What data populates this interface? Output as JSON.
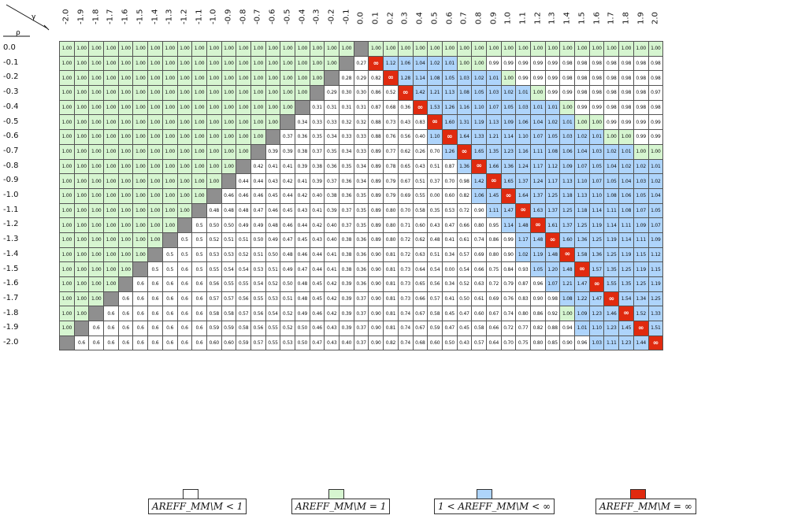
{
  "header": {
    "row_symbol": "ρ",
    "col_symbol": "γ"
  },
  "columns": [
    "-2.0",
    "-1.9",
    "-1.8",
    "-1.7",
    "-1.6",
    "-1.5",
    "-1.4",
    "-1.3",
    "-1.2",
    "-1.1",
    "-1.0",
    "-0.9",
    "-0.8",
    "-0.7",
    "-0.6",
    "-0.5",
    "-0.4",
    "-0.3",
    "-0.2",
    "-0.1",
    "0.0",
    "0.1",
    "0.2",
    "0.3",
    "0.4",
    "0.5",
    "0.6",
    "0.7",
    "0.8",
    "0.9",
    "1.0",
    "1.1",
    "1.2",
    "1.3",
    "1.4",
    "1.5",
    "1.6",
    "1.7",
    "1.8",
    "1.9",
    "2.0"
  ],
  "rows": [
    {
      "label": "0.0",
      "cells": [
        "1.00",
        "1.00",
        "1.00",
        "1.00",
        "1.00",
        "1.00",
        "1.00",
        "1.00",
        "1.00",
        "1.00",
        "1.00",
        "1.00",
        "1.00",
        "1.00",
        "1.00",
        "1.00",
        "1.00",
        "1.00",
        "1.00",
        "1.00",
        "",
        "1.00",
        "1.00",
        "1.00",
        "1.00",
        "1.00",
        "1.00",
        "1.00",
        "1.00",
        "1.00",
        "1.00",
        "1.00",
        "1.00",
        "1.00",
        "1.00",
        "1.00",
        "1.00",
        "1.00",
        "1.00",
        "1.00",
        "1.00"
      ]
    },
    {
      "label": "-0.1",
      "cells": [
        "1.00",
        "1.00",
        "1.00",
        "1.00",
        "1.00",
        "1.00",
        "1.00",
        "1.00",
        "1.00",
        "1.00",
        "1.00",
        "1.00",
        "1.00",
        "1.00",
        "1.00",
        "1.00",
        "1.00",
        "1.00",
        "1.00",
        "",
        "0.27",
        "∞",
        "1.12",
        "1.06",
        "1.04",
        "1.02",
        "1.01",
        "1.00",
        "1.00",
        "0.99",
        "0.99",
        "0.99",
        "0.99",
        "0.99",
        "0.98",
        "0.98",
        "0.98",
        "0.98",
        "0.98",
        "0.98",
        "0.98"
      ]
    },
    {
      "label": "-0.2",
      "cells": [
        "1.00",
        "1.00",
        "1.00",
        "1.00",
        "1.00",
        "1.00",
        "1.00",
        "1.00",
        "1.00",
        "1.00",
        "1.00",
        "1.00",
        "1.00",
        "1.00",
        "1.00",
        "1.00",
        "1.00",
        "1.00",
        "",
        "0.28",
        "0.29",
        "0.82",
        "∞",
        "1.28",
        "1.14",
        "1.08",
        "1.05",
        "1.03",
        "1.02",
        "1.01",
        "1.00",
        "0.99",
        "0.99",
        "0.99",
        "0.98",
        "0.98",
        "0.98",
        "0.98",
        "0.98",
        "0.98",
        "0.98"
      ]
    },
    {
      "label": "-0.3",
      "cells": [
        "1.00",
        "1.00",
        "1.00",
        "1.00",
        "1.00",
        "1.00",
        "1.00",
        "1.00",
        "1.00",
        "1.00",
        "1.00",
        "1.00",
        "1.00",
        "1.00",
        "1.00",
        "1.00",
        "1.00",
        "",
        "0.29",
        "0.30",
        "0.30",
        "0.86",
        "0.52",
        "∞",
        "1.42",
        "1.21",
        "1.13",
        "1.08",
        "1.05",
        "1.03",
        "1.02",
        "1.01",
        "1.00",
        "0.99",
        "0.99",
        "0.98",
        "0.98",
        "0.98",
        "0.98",
        "0.98",
        "0.97"
      ]
    },
    {
      "label": "-0.4",
      "cells": [
        "1.00",
        "1.00",
        "1.00",
        "1.00",
        "1.00",
        "1.00",
        "1.00",
        "1.00",
        "1.00",
        "1.00",
        "1.00",
        "1.00",
        "1.00",
        "1.00",
        "1.00",
        "1.00",
        "",
        "0.31",
        "0.31",
        "0.31",
        "0.31",
        "0.87",
        "0.68",
        "0.36",
        "∞",
        "1.53",
        "1.26",
        "1.16",
        "1.10",
        "1.07",
        "1.05",
        "1.03",
        "1.01",
        "1.01",
        "1.00",
        "0.99",
        "0.99",
        "0.98",
        "0.98",
        "0.98",
        "0.98"
      ]
    },
    {
      "label": "-0.5",
      "cells": [
        "1.00",
        "1.00",
        "1.00",
        "1.00",
        "1.00",
        "1.00",
        "1.00",
        "1.00",
        "1.00",
        "1.00",
        "1.00",
        "1.00",
        "1.00",
        "1.00",
        "1.00",
        "",
        "0.34",
        "0.33",
        "0.33",
        "0.32",
        "0.32",
        "0.88",
        "0.73",
        "0.43",
        "0.83",
        "∞",
        "1.60",
        "1.31",
        "1.19",
        "1.13",
        "1.09",
        "1.06",
        "1.04",
        "1.02",
        "1.01",
        "1.00",
        "1.00",
        "0.99",
        "0.99",
        "0.99",
        "0.99"
      ]
    },
    {
      "label": "-0.6",
      "cells": [
        "1.00",
        "1.00",
        "1.00",
        "1.00",
        "1.00",
        "1.00",
        "1.00",
        "1.00",
        "1.00",
        "1.00",
        "1.00",
        "1.00",
        "1.00",
        "1.00",
        "",
        "0.37",
        "0.36",
        "0.35",
        "0.34",
        "0.33",
        "0.33",
        "0.88",
        "0.76",
        "0.56",
        "0.40",
        "1.10",
        "∞",
        "1.64",
        "1.33",
        "1.21",
        "1.14",
        "1.10",
        "1.07",
        "1.05",
        "1.03",
        "1.02",
        "1.01",
        "1.00",
        "1.00",
        "0.99",
        "0.99"
      ]
    },
    {
      "label": "-0.7",
      "cells": [
        "1.00",
        "1.00",
        "1.00",
        "1.00",
        "1.00",
        "1.00",
        "1.00",
        "1.00",
        "1.00",
        "1.00",
        "1.00",
        "1.00",
        "1.00",
        "",
        "0.39",
        "0.39",
        "0.38",
        "0.37",
        "0.35",
        "0.34",
        "0.33",
        "0.89",
        "0.77",
        "0.62",
        "0.26",
        "0.70",
        "1.26",
        "∞",
        "1.65",
        "1.35",
        "1.23",
        "1.16",
        "1.11",
        "1.08",
        "1.06",
        "1.04",
        "1.03",
        "1.02",
        "1.01",
        "1.00",
        "1.00"
      ]
    },
    {
      "label": "-0.8",
      "cells": [
        "1.00",
        "1.00",
        "1.00",
        "1.00",
        "1.00",
        "1.00",
        "1.00",
        "1.00",
        "1.00",
        "1.00",
        "1.00",
        "1.00",
        "",
        "0.42",
        "0.41",
        "0.41",
        "0.39",
        "0.38",
        "0.36",
        "0.35",
        "0.34",
        "0.89",
        "0.78",
        "0.65",
        "0.43",
        "0.51",
        "0.87",
        "1.36",
        "∞",
        "1.66",
        "1.36",
        "1.24",
        "1.17",
        "1.12",
        "1.09",
        "1.07",
        "1.05",
        "1.04",
        "1.02",
        "1.02",
        "1.01"
      ]
    },
    {
      "label": "-0.9",
      "cells": [
        "1.00",
        "1.00",
        "1.00",
        "1.00",
        "1.00",
        "1.00",
        "1.00",
        "1.00",
        "1.00",
        "1.00",
        "1.00",
        "",
        "0.44",
        "0.44",
        "0.43",
        "0.42",
        "0.41",
        "0.39",
        "0.37",
        "0.36",
        "0.34",
        "0.89",
        "0.79",
        "0.67",
        "0.51",
        "0.37",
        "0.70",
        "0.98",
        "1.42",
        "∞",
        "1.65",
        "1.37",
        "1.24",
        "1.17",
        "1.13",
        "1.10",
        "1.07",
        "1.05",
        "1.04",
        "1.03",
        "1.02"
      ]
    },
    {
      "label": "-1.0",
      "cells": [
        "1.00",
        "1.00",
        "1.00",
        "1.00",
        "1.00",
        "1.00",
        "1.00",
        "1.00",
        "1.00",
        "1.00",
        "",
        "0.46",
        "0.46",
        "0.46",
        "0.45",
        "0.44",
        "0.42",
        "0.40",
        "0.38",
        "0.36",
        "0.35",
        "0.89",
        "0.79",
        "0.69",
        "0.55",
        "0.00",
        "0.60",
        "0.82",
        "1.06",
        "1.45",
        "∞",
        "1.64",
        "1.37",
        "1.25",
        "1.18",
        "1.13",
        "1.10",
        "1.08",
        "1.06",
        "1.05",
        "1.04"
      ]
    },
    {
      "label": "-1.1",
      "cells": [
        "1.00",
        "1.00",
        "1.00",
        "1.00",
        "1.00",
        "1.00",
        "1.00",
        "1.00",
        "1.00",
        "",
        "0.48",
        "0.48",
        "0.48",
        "0.47",
        "0.46",
        "0.45",
        "0.43",
        "0.41",
        "0.39",
        "0.37",
        "0.35",
        "0.89",
        "0.80",
        "0.70",
        "0.58",
        "0.35",
        "0.53",
        "0.72",
        "0.90",
        "1.11",
        "1.47",
        "∞",
        "1.63",
        "1.37",
        "1.25",
        "1.18",
        "1.14",
        "1.11",
        "1.08",
        "1.07",
        "1.05"
      ]
    },
    {
      "label": "-1.2",
      "cells": [
        "1.00",
        "1.00",
        "1.00",
        "1.00",
        "1.00",
        "1.00",
        "1.00",
        "1.00",
        "",
        "0.5",
        "0.50",
        "0.50",
        "0.49",
        "0.49",
        "0.48",
        "0.46",
        "0.44",
        "0.42",
        "0.40",
        "0.37",
        "0.35",
        "0.89",
        "0.80",
        "0.71",
        "0.60",
        "0.43",
        "0.47",
        "0.66",
        "0.80",
        "0.95",
        "1.14",
        "1.48",
        "∞",
        "1.61",
        "1.37",
        "1.25",
        "1.19",
        "1.14",
        "1.11",
        "1.09",
        "1.07"
      ]
    },
    {
      "label": "-1.3",
      "cells": [
        "1.00",
        "1.00",
        "1.00",
        "1.00",
        "1.00",
        "1.00",
        "1.00",
        "",
        "0.5",
        "0.5",
        "0.52",
        "0.51",
        "0.51",
        "0.50",
        "0.49",
        "0.47",
        "0.45",
        "0.43",
        "0.40",
        "0.38",
        "0.36",
        "0.89",
        "0.80",
        "0.72",
        "0.62",
        "0.48",
        "0.41",
        "0.61",
        "0.74",
        "0.86",
        "0.99",
        "1.17",
        "1.48",
        "∞",
        "1.60",
        "1.36",
        "1.25",
        "1.19",
        "1.14",
        "1.11",
        "1.09"
      ]
    },
    {
      "label": "-1.4",
      "cells": [
        "1.00",
        "1.00",
        "1.00",
        "1.00",
        "1.00",
        "1.00",
        "",
        "0.5",
        "0.5",
        "0.5",
        "0.53",
        "0.53",
        "0.52",
        "0.51",
        "0.50",
        "0.48",
        "0.46",
        "0.44",
        "0.41",
        "0.38",
        "0.36",
        "0.90",
        "0.81",
        "0.72",
        "0.63",
        "0.51",
        "0.34",
        "0.57",
        "0.69",
        "0.80",
        "0.90",
        "1.02",
        "1.19",
        "1.48",
        "∞",
        "1.58",
        "1.36",
        "1.25",
        "1.19",
        "1.15",
        "1.12"
      ]
    },
    {
      "label": "-1.5",
      "cells": [
        "1.00",
        "1.00",
        "1.00",
        "1.00",
        "1.00",
        "",
        "0.5",
        "0.5",
        "0.6",
        "0.5",
        "0.55",
        "0.54",
        "0.54",
        "0.53",
        "0.51",
        "0.49",
        "0.47",
        "0.44",
        "0.41",
        "0.38",
        "0.36",
        "0.90",
        "0.81",
        "0.73",
        "0.64",
        "0.54",
        "0.00",
        "0.54",
        "0.66",
        "0.75",
        "0.84",
        "0.93",
        "1.05",
        "1.20",
        "1.48",
        "∞",
        "1.57",
        "1.35",
        "1.25",
        "1.19",
        "1.15"
      ]
    },
    {
      "label": "-1.6",
      "cells": [
        "1.00",
        "1.00",
        "1.00",
        "1.00",
        "",
        "0.6",
        "0.6",
        "0.6",
        "0.6",
        "0.6",
        "0.56",
        "0.55",
        "0.55",
        "0.54",
        "0.52",
        "0.50",
        "0.48",
        "0.45",
        "0.42",
        "0.39",
        "0.36",
        "0.90",
        "0.81",
        "0.73",
        "0.65",
        "0.56",
        "0.34",
        "0.52",
        "0.63",
        "0.72",
        "0.79",
        "0.87",
        "0.96",
        "1.07",
        "1.21",
        "1.47",
        "∞",
        "1.55",
        "1.35",
        "1.25",
        "1.19"
      ]
    },
    {
      "label": "-1.7",
      "cells": [
        "1.00",
        "1.00",
        "1.00",
        "",
        "0.6",
        "0.6",
        "0.6",
        "0.6",
        "0.6",
        "0.6",
        "0.57",
        "0.57",
        "0.56",
        "0.55",
        "0.53",
        "0.51",
        "0.48",
        "0.45",
        "0.42",
        "0.39",
        "0.37",
        "0.90",
        "0.81",
        "0.73",
        "0.66",
        "0.57",
        "0.41",
        "0.50",
        "0.61",
        "0.69",
        "0.76",
        "0.83",
        "0.90",
        "0.98",
        "1.08",
        "1.22",
        "1.47",
        "∞",
        "1.54",
        "1.34",
        "1.25"
      ]
    },
    {
      "label": "-1.8",
      "cells": [
        "1.00",
        "1.00",
        "",
        "0.6",
        "0.6",
        "0.6",
        "0.6",
        "0.6",
        "0.6",
        "0.6",
        "0.58",
        "0.58",
        "0.57",
        "0.56",
        "0.54",
        "0.52",
        "0.49",
        "0.46",
        "0.42",
        "0.39",
        "0.37",
        "0.90",
        "0.81",
        "0.74",
        "0.67",
        "0.58",
        "0.45",
        "0.47",
        "0.60",
        "0.67",
        "0.74",
        "0.80",
        "0.86",
        "0.92",
        "1.00",
        "1.09",
        "1.23",
        "1.46",
        "∞",
        "1.52",
        "1.33"
      ]
    },
    {
      "label": "-1.9",
      "cells": [
        "1.00",
        "",
        "0.6",
        "0.6",
        "0.6",
        "0.6",
        "0.6",
        "0.6",
        "0.6",
        "0.6",
        "0.59",
        "0.59",
        "0.58",
        "0.56",
        "0.55",
        "0.52",
        "0.50",
        "0.46",
        "0.43",
        "0.39",
        "0.37",
        "0.90",
        "0.81",
        "0.74",
        "0.67",
        "0.59",
        "0.47",
        "0.45",
        "0.58",
        "0.66",
        "0.72",
        "0.77",
        "0.82",
        "0.88",
        "0.94",
        "1.01",
        "1.10",
        "1.23",
        "1.45",
        "∞",
        "1.51"
      ]
    },
    {
      "label": "-2.0",
      "cells": [
        "",
        "0.6",
        "0.6",
        "0.6",
        "0.6",
        "0.6",
        "0.6",
        "0.6",
        "0.6",
        "0.6",
        "0.60",
        "0.60",
        "0.59",
        "0.57",
        "0.55",
        "0.53",
        "0.50",
        "0.47",
        "0.43",
        "0.40",
        "0.37",
        "0.90",
        "0.82",
        "0.74",
        "0.68",
        "0.60",
        "0.50",
        "0.43",
        "0.57",
        "0.64",
        "0.70",
        "0.75",
        "0.80",
        "0.85",
        "0.90",
        "0.96",
        "1.03",
        "1.11",
        "1.23",
        "1.44",
        "∞"
      ]
    }
  ],
  "legend": [
    {
      "label": "AREFF_MM\\M < 1",
      "color": "#ffffff"
    },
    {
      "label": "AREFF_MM\\M = 1",
      "color": "#d6f5d0"
    },
    {
      "label": "1 < AREFF_MM\\M < ∞",
      "color": "#aed4fb"
    },
    {
      "label": "AREFF_MM\\M = ∞",
      "color": "#e02a0f"
    }
  ],
  "colors": {
    "less": "#ffffff",
    "equal": "#d6f5d0",
    "greater": "#aed4fb",
    "infinite": "#e02a0f",
    "diagonal": "#8f8f8f"
  }
}
